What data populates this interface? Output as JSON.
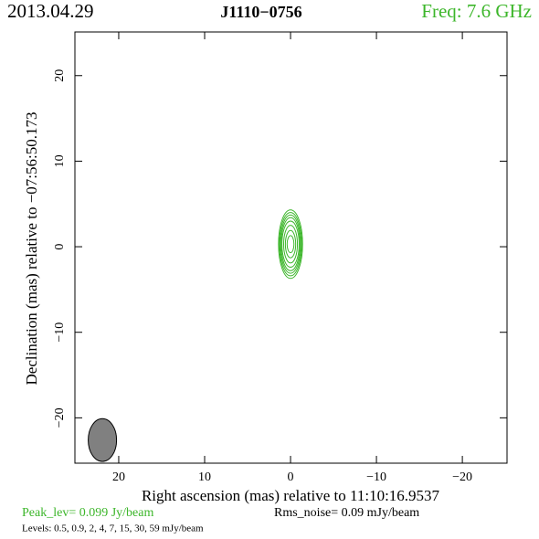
{
  "chart_data": {
    "type": "contour",
    "date": "2013.04.29",
    "title": "J1110−0756",
    "frequency": "Freq: 7.6 GHz",
    "xlabel": "Right ascension (mas) relative to 11:10:16.9537",
    "ylabel": "Declination (mas) relative to −07:56:50.173",
    "peak": "Peak_lev=  0.099 Jy/beam",
    "noise": "Rms_noise= 0.09 mJy/beam",
    "levels": "Levels: 0.5, 0.9,   2,   4,   7,  15,  30,  59 mJy/beam",
    "color": "#3cb62a",
    "beam_color": "#808080",
    "xlim": [
      25.1,
      -25.2
    ],
    "ylim": [
      -25.3,
      25.1
    ],
    "xticks": [
      20,
      10,
      0,
      {
        "value": -10,
        "label": "−10"
      },
      {
        "value": -20,
        "label": "−20"
      }
    ],
    "yticks": [
      {
        "value": -20,
        "label": "−20"
      },
      {
        "value": -10,
        "label": "−10"
      },
      0,
      10,
      20
    ],
    "source": {
      "x": 0.0,
      "y": 0.3
    },
    "contours": [
      {
        "rx": 1.4,
        "ry": 4.0
      },
      {
        "rx": 1.3,
        "ry": 3.7
      },
      {
        "rx": 1.2,
        "ry": 3.4
      },
      {
        "rx": 1.1,
        "ry": 3.1
      },
      {
        "rx": 1.0,
        "ry": 2.7
      },
      {
        "rx": 0.8,
        "ry": 2.2
      },
      {
        "rx": 0.6,
        "ry": 1.6
      },
      {
        "rx": 0.4,
        "ry": 1.0
      }
    ],
    "beam": {
      "x": 21.9,
      "y": -22.6,
      "rx": 1.65,
      "ry": 2.5
    }
  }
}
